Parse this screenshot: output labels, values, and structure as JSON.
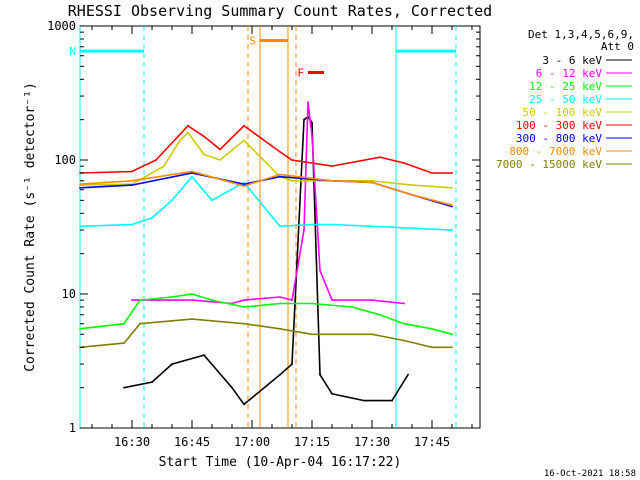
{
  "chart_data": {
    "type": "line",
    "title": "RHESSI Observing Summary Count Rates, Corrected",
    "xlabel": "Start Time (10-Apr-04 16:17:22)",
    "ylabel": "Corrected Count Rate (s⁻¹ detector⁻¹)",
    "yscale": "log",
    "ylim": [
      1,
      1000
    ],
    "xlim_minutes_after_1617": [
      0,
      100
    ],
    "x_tick_labels": [
      "16:30",
      "16:45",
      "17:00",
      "17:15",
      "17:30",
      "17:45"
    ],
    "y_tick_labels": [
      "1",
      "10",
      "100",
      "1000"
    ],
    "legend": {
      "header": [
        "Det 1,3,4,5,6,9,",
        "Att 0"
      ],
      "position": "top-right"
    },
    "series": [
      {
        "name": "3 - 6 keV",
        "color": "#000000",
        "x": [
          "16:28",
          "16:35",
          "16:40",
          "16:48",
          "16:55",
          "16:58",
          "17:07",
          "17:10",
          "17:13",
          "17:14",
          "17:15",
          "17:17",
          "17:20",
          "17:28",
          "17:35",
          "17:39"
        ],
        "y": [
          2.0,
          2.2,
          3.0,
          3.5,
          2.0,
          1.5,
          2.5,
          3.0,
          200,
          210,
          190,
          2.5,
          1.8,
          1.6,
          1.6,
          2.5
        ]
      },
      {
        "name": "6 - 12 keV",
        "color": "#ff00ff",
        "x": [
          "16:30",
          "16:37",
          "16:45",
          "16:55",
          "16:58",
          "17:07",
          "17:10",
          "17:13",
          "17:14",
          "17:15",
          "17:17",
          "17:20",
          "17:30",
          "17:38"
        ],
        "y": [
          9,
          9,
          9,
          8.5,
          9,
          9.5,
          9,
          30,
          270,
          150,
          15,
          9,
          9,
          8.5
        ]
      },
      {
        "name": "12 - 25 keV",
        "color": "#00ff00",
        "x": [
          "16:17",
          "16:28",
          "16:32",
          "16:40",
          "16:45",
          "16:50",
          "16:58",
          "17:07",
          "17:15",
          "17:25",
          "17:32",
          "17:38",
          "17:45",
          "17:50"
        ],
        "y": [
          5.5,
          6,
          9,
          9.5,
          10,
          9,
          8,
          8.5,
          8.5,
          8,
          7,
          6,
          5.5,
          5
        ]
      },
      {
        "name": "25 - 50 keV",
        "color": "#00ffff",
        "x": [
          "16:17",
          "16:30",
          "16:35",
          "16:40",
          "16:45",
          "16:50",
          "16:58",
          "17:07",
          "17:15",
          "17:20",
          "17:30",
          "17:40",
          "17:50"
        ],
        "y": [
          32,
          33,
          37,
          50,
          75,
          50,
          68,
          32,
          33,
          33,
          32,
          31,
          30
        ]
      },
      {
        "name": "50 - 100 keV",
        "color": "#cccc00",
        "x": [
          "16:17",
          "16:30",
          "16:38",
          "16:42",
          "16:44",
          "16:48",
          "16:52",
          "16:58",
          "17:07",
          "17:10",
          "17:20",
          "17:30",
          "17:40",
          "17:50"
        ],
        "y": [
          65,
          66,
          90,
          140,
          160,
          110,
          100,
          140,
          75,
          70,
          70,
          70,
          65,
          62
        ]
      },
      {
        "name": "100 - 300 keV",
        "color": "#ff0000",
        "x": [
          "16:17",
          "16:30",
          "16:36",
          "16:44",
          "16:48",
          "16:52",
          "16:58",
          "17:07",
          "17:10",
          "17:20",
          "17:32",
          "17:38",
          "17:45",
          "17:50"
        ],
        "y": [
          80,
          82,
          100,
          180,
          150,
          120,
          180,
          115,
          100,
          90,
          105,
          95,
          80,
          80
        ]
      },
      {
        "name": "300 - 800 keV",
        "color": "#0000ff",
        "x": [
          "16:17",
          "16:30",
          "16:45",
          "16:58",
          "17:07",
          "17:20",
          "17:30",
          "17:40",
          "17:50"
        ],
        "y": [
          62,
          65,
          80,
          66,
          75,
          70,
          68,
          55,
          45
        ]
      },
      {
        "name": "800 - 7000 keV",
        "color": "#ff8c00",
        "x": [
          "16:17",
          "16:30",
          "16:45",
          "16:58",
          "17:07",
          "17:20",
          "17:30",
          "17:40",
          "17:50"
        ],
        "y": [
          66,
          70,
          82,
          64,
          78,
          70,
          68,
          55,
          46
        ]
      },
      {
        "name": "7000 - 15000 keV",
        "color": "#808000",
        "x": [
          "16:17",
          "16:28",
          "16:32",
          "16:45",
          "16:58",
          "17:07",
          "17:15",
          "17:30",
          "17:38",
          "17:45",
          "17:50"
        ],
        "y": [
          4,
          4.3,
          6,
          6.5,
          6,
          5.5,
          5,
          5,
          4.5,
          4,
          4
        ]
      }
    ],
    "annotations": [
      {
        "label": "N",
        "color": "#00ffff",
        "x_start": "16:17",
        "x_end": "16:33",
        "level": 650
      },
      {
        "label": "",
        "color": "#00ffff",
        "x_start": "17:36",
        "x_end": "17:51",
        "level": 650
      },
      {
        "label": "S",
        "color": "#ff8c00",
        "x_start": "17:02",
        "x_end": "17:09",
        "level": 780
      },
      {
        "label": "F",
        "color": "#ff0000",
        "x_start": "17:14",
        "x_end": "17:18",
        "level": 450
      }
    ],
    "vertical_markers": [
      {
        "x": "16:33",
        "color": "#00ffff",
        "style": "dashed"
      },
      {
        "x": "17:51",
        "color": "#00ffff",
        "style": "dashed"
      },
      {
        "x": "17:36",
        "color": "#00ffff",
        "style": "solid"
      },
      {
        "x": "16:17",
        "color": "#00ffff",
        "style": "solid"
      },
      {
        "x": "17:02",
        "color": "#ff8c00",
        "style": "solid"
      },
      {
        "x": "17:09",
        "color": "#ff8c00",
        "style": "solid"
      },
      {
        "x": "16:59",
        "color": "#ff8c00",
        "style": "dashed"
      },
      {
        "x": "17:11",
        "color": "#ff8c00",
        "style": "dashed"
      }
    ],
    "grid": false
  },
  "footer": {
    "timestamp": "16-Oct-2021 18:58"
  }
}
